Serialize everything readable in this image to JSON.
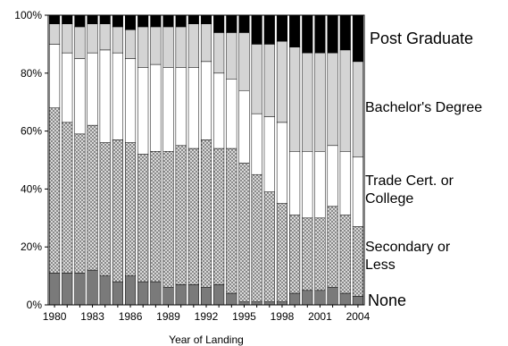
{
  "chart_data": {
    "type": "bar",
    "stacked": true,
    "normalized": true,
    "xlabel": "Year of Landing",
    "ylabel": "",
    "ylim": [
      0,
      100
    ],
    "yticks": [
      "0%",
      "20%",
      "40%",
      "60%",
      "80%",
      "100%"
    ],
    "xtick_labels": [
      "1980",
      "1983",
      "1986",
      "1989",
      "1992",
      "1995",
      "1998",
      "2001",
      "2004"
    ],
    "categories": [
      "1980",
      "1981",
      "1982",
      "1983",
      "1984",
      "1985",
      "1986",
      "1987",
      "1988",
      "1989",
      "1990",
      "1991",
      "1992",
      "1993",
      "1994",
      "1995",
      "1996",
      "1997",
      "1998",
      "1999",
      "2000",
      "2001",
      "2002",
      "2003",
      "2004"
    ],
    "series": [
      {
        "name": "None",
        "color": "#7a7a7a",
        "pattern": "solid",
        "values": [
          11,
          11,
          11,
          12,
          10,
          8,
          10,
          8,
          8,
          6,
          7,
          7,
          6,
          7,
          4,
          1,
          1,
          1,
          1,
          4,
          5,
          5,
          6,
          4,
          3
        ]
      },
      {
        "name": "Secondary or Less",
        "color": "#d0d0d0",
        "pattern": "crosshatch",
        "values": [
          57,
          52,
          48,
          50,
          46,
          49,
          46,
          44,
          45,
          47,
          48,
          47,
          51,
          47,
          50,
          48,
          44,
          38,
          34,
          27,
          25,
          25,
          28,
          27,
          24
        ]
      },
      {
        "name": "Trade Cert. or College",
        "color": "#ffffff",
        "pattern": "solid",
        "values": [
          22,
          24,
          26,
          25,
          32,
          30,
          29,
          30,
          30,
          29,
          27,
          28,
          27,
          26,
          24,
          25,
          21,
          26,
          28,
          22,
          23,
          23,
          21,
          22,
          24
        ]
      },
      {
        "name": "Bachelor's Degree",
        "color": "#d4d4d4",
        "pattern": "solid",
        "values": [
          7,
          10,
          11,
          10,
          9,
          9,
          10,
          14,
          13,
          14,
          14,
          15,
          13,
          14,
          16,
          20,
          24,
          25,
          28,
          36,
          34,
          34,
          32,
          35,
          33
        ]
      },
      {
        "name": "Post Graduate",
        "color": "#000000",
        "pattern": "solid",
        "values": [
          3,
          3,
          4,
          3,
          3,
          4,
          5,
          4,
          4,
          4,
          4,
          3,
          3,
          6,
          6,
          6,
          10,
          10,
          9,
          11,
          13,
          13,
          13,
          12,
          16
        ]
      }
    ],
    "legend_placement": "right",
    "grid": false
  }
}
